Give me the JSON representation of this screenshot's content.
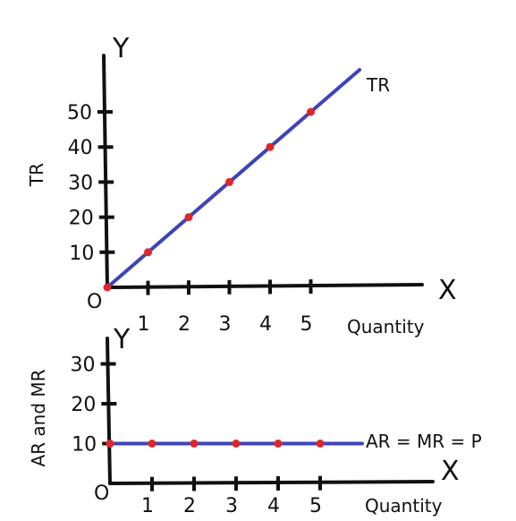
{
  "colors": {
    "axis": "#111111",
    "line": "#3d44b8",
    "point": "#e0262b"
  },
  "chart_data": [
    {
      "type": "line",
      "axis_letters": {
        "x": "X",
        "y": "Y"
      },
      "origin_label": "O",
      "xlabel": "Quantity",
      "ylabel": "TR",
      "x_ticks": [
        "1",
        "2",
        "3",
        "4",
        "5"
      ],
      "y_ticks": [
        "10",
        "20",
        "30",
        "40",
        "50"
      ],
      "xlim": [
        0,
        7.7
      ],
      "ylim": [
        0,
        57
      ],
      "grid": false,
      "series": [
        {
          "name": "TR",
          "x": [
            0,
            1,
            2,
            3,
            4,
            5
          ],
          "y": [
            0,
            10,
            20,
            30,
            40,
            50
          ],
          "line_end": [
            6.2,
            62
          ]
        }
      ]
    },
    {
      "type": "line",
      "axis_letters": {
        "x": "X",
        "y": "Y"
      },
      "origin_label": "O",
      "xlabel": "Quantity",
      "ylabel": "AR and MR",
      "x_ticks": [
        "1",
        "2",
        "3",
        "4",
        "5"
      ],
      "y_ticks": [
        "10",
        "20",
        "30"
      ],
      "xlim": [
        0,
        7.8
      ],
      "ylim": [
        0,
        35
      ],
      "grid": false,
      "series": [
        {
          "name": "AR = MR = P",
          "x": [
            0,
            1,
            2,
            3,
            4,
            5
          ],
          "y": [
            10,
            10,
            10,
            10,
            10,
            10
          ],
          "line_end": [
            6,
            10
          ]
        }
      ]
    }
  ]
}
